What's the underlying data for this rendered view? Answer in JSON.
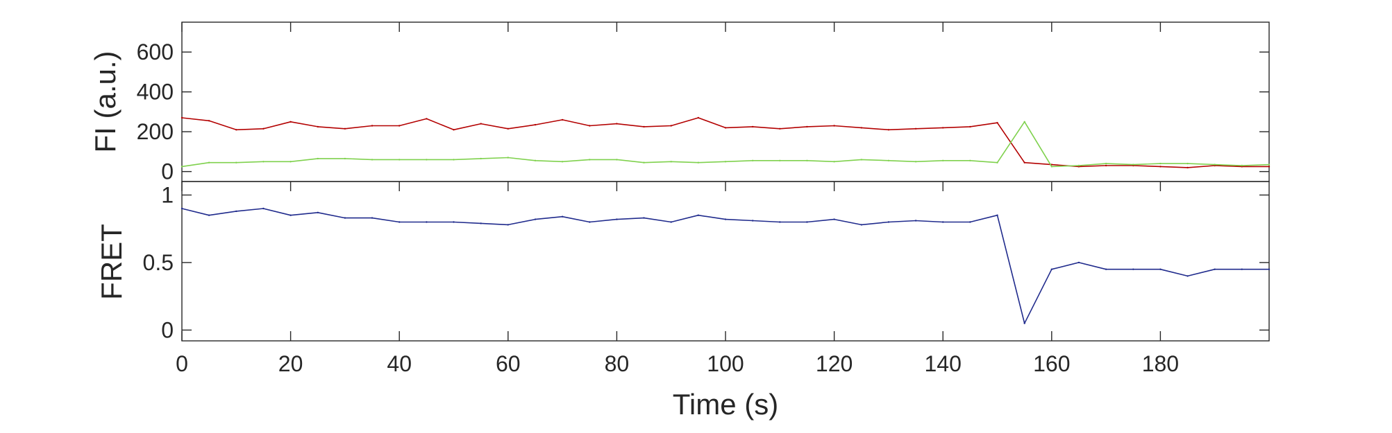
{
  "chart_data": [
    {
      "type": "line",
      "title": "",
      "xlabel": "",
      "ylabel": "FI (a.u.)",
      "xlim": [
        0,
        200
      ],
      "ylim": [
        -50,
        750
      ],
      "yticks": [
        0,
        200,
        400,
        600
      ],
      "grid": false,
      "series": [
        {
          "color": "#b30000",
          "sample_interval_s": 5,
          "x_start": 0,
          "values": [
            270,
            255,
            210,
            215,
            250,
            225,
            215,
            230,
            230,
            265,
            210,
            240,
            215,
            235,
            260,
            230,
            240,
            225,
            230,
            270,
            220,
            225,
            215,
            225,
            230,
            220,
            210,
            215,
            220,
            225,
            245,
            45,
            35,
            25,
            30,
            30,
            25,
            20,
            30,
            25,
            25
          ]
        },
        {
          "color": "#7fd14d",
          "sample_interval_s": 5,
          "x_start": 0,
          "values": [
            25,
            45,
            45,
            50,
            50,
            65,
            65,
            60,
            60,
            60,
            60,
            65,
            70,
            55,
            50,
            60,
            60,
            45,
            50,
            45,
            50,
            55,
            55,
            55,
            50,
            60,
            55,
            50,
            55,
            55,
            45,
            250,
            25,
            30,
            40,
            35,
            40,
            40,
            35,
            30,
            35
          ]
        }
      ]
    },
    {
      "type": "line",
      "title": "",
      "xlabel": "Time (s)",
      "ylabel": "FRET",
      "xlim": [
        0,
        200
      ],
      "ylim": [
        -0.08,
        1.1
      ],
      "yticks": [
        0,
        0.5,
        1
      ],
      "xticks": [
        0,
        20,
        40,
        60,
        80,
        100,
        120,
        140,
        160,
        180
      ],
      "grid": false,
      "series": [
        {
          "color": "#1f2a8c",
          "sample_interval_s": 5,
          "x_start": 0,
          "values": [
            0.9,
            0.85,
            0.88,
            0.9,
            0.85,
            0.87,
            0.83,
            0.83,
            0.8,
            0.8,
            0.8,
            0.79,
            0.78,
            0.82,
            0.84,
            0.8,
            0.82,
            0.83,
            0.8,
            0.85,
            0.82,
            0.81,
            0.8,
            0.8,
            0.82,
            0.78,
            0.8,
            0.81,
            0.8,
            0.8,
            0.85,
            0.05,
            0.45,
            0.5,
            0.45,
            0.45,
            0.45,
            0.4,
            0.45,
            0.45,
            0.45
          ]
        }
      ]
    }
  ]
}
